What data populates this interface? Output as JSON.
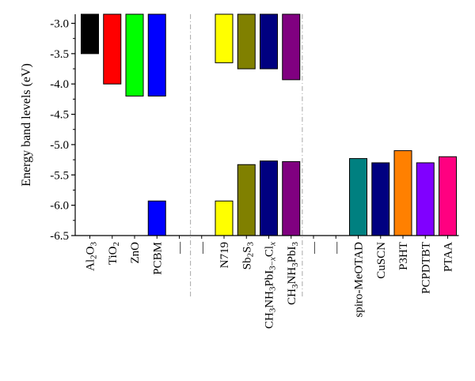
{
  "chart_data": {
    "type": "bar",
    "title": "",
    "xlabel": "",
    "ylabel": "Energy band levels (eV)",
    "ylim": [
      -6.5,
      -2.85
    ],
    "yticks": [
      -3.0,
      -3.5,
      -4.0,
      -4.5,
      -5.0,
      -5.5,
      -6.0,
      -6.5
    ],
    "ytick_labels": [
      "-3.0",
      "-3.5",
      "-4.0",
      "-4.5",
      "-5.0",
      "-5.5",
      "-6.0",
      "-6.5"
    ],
    "grid": false,
    "legend": "none",
    "bars_from": "top",
    "categories": [
      {
        "label": "Al2O3",
        "parts": [
          [
            "Al",
            ""
          ],
          [
            "2",
            "sub"
          ],
          [
            "O",
            ""
          ],
          [
            "3",
            "sub"
          ]
        ]
      },
      {
        "label": "TiO2",
        "parts": [
          [
            "TiO",
            ""
          ],
          [
            "2",
            "sub"
          ]
        ]
      },
      {
        "label": "ZnO",
        "parts": [
          [
            "ZnO",
            ""
          ]
        ]
      },
      {
        "label": "PCBM",
        "parts": [
          [
            "PCBM",
            ""
          ]
        ]
      },
      {
        "label": "—",
        "parts": [
          [
            "—",
            ""
          ]
        ]
      },
      {
        "label": "—",
        "parts": [
          [
            "—",
            ""
          ]
        ]
      },
      {
        "label": "N719",
        "parts": [
          [
            "N719",
            ""
          ]
        ]
      },
      {
        "label": "Sb2S3",
        "parts": [
          [
            "Sb",
            ""
          ],
          [
            "2",
            "sub"
          ],
          [
            "S",
            ""
          ],
          [
            "3",
            "sub"
          ]
        ]
      },
      {
        "label": "CH3NH3PbI3−xClx",
        "parts": [
          [
            "CH",
            ""
          ],
          [
            "3",
            "sub"
          ],
          [
            "NH",
            ""
          ],
          [
            "3",
            "sub"
          ],
          [
            "PbI",
            ""
          ],
          [
            "3−",
            "sub"
          ],
          [
            "x",
            "subi"
          ],
          [
            "Cl",
            ""
          ],
          [
            "x",
            "subi"
          ]
        ]
      },
      {
        "label": "CH3NH3PbI3",
        "parts": [
          [
            "CH",
            ""
          ],
          [
            "3",
            "sub"
          ],
          [
            "NH",
            ""
          ],
          [
            "3",
            "sub"
          ],
          [
            "PbI",
            ""
          ],
          [
            "3",
            "sub"
          ]
        ]
      },
      {
        "label": "—",
        "parts": [
          [
            "—",
            ""
          ]
        ]
      },
      {
        "label": "—",
        "parts": [
          [
            "—",
            ""
          ]
        ]
      },
      {
        "label": "spiro-MeOTAD",
        "parts": [
          [
            "spiro-MeOTAD",
            ""
          ]
        ]
      },
      {
        "label": "CuSCN",
        "parts": [
          [
            "CuSCN",
            ""
          ]
        ]
      },
      {
        "label": "P3HT",
        "parts": [
          [
            "P3HT",
            ""
          ]
        ]
      },
      {
        "label": "PCPDTBT",
        "parts": [
          [
            "PCPDTBT",
            ""
          ]
        ]
      },
      {
        "label": "PTAA",
        "parts": [
          [
            "PTAA",
            ""
          ]
        ]
      }
    ],
    "series": [
      {
        "level": "upper",
        "values": [
          -3.5,
          -4.0,
          -4.2,
          -4.2,
          null,
          null,
          -3.65,
          -3.75,
          -3.75,
          -3.93,
          null,
          null,
          null,
          null,
          null,
          null,
          null
        ],
        "colors": [
          "#000000",
          "#ff0000",
          "#00ff00",
          "#0000ff",
          null,
          null,
          "#ffff00",
          "#808000",
          "#000080",
          "#800080",
          null,
          null,
          null,
          null,
          null,
          null,
          null
        ]
      },
      {
        "level": "lower",
        "values": [
          null,
          null,
          null,
          -5.93,
          null,
          null,
          -5.93,
          -5.33,
          -5.27,
          -5.28,
          null,
          null,
          -5.23,
          -5.3,
          -5.1,
          -5.3,
          -5.2
        ],
        "colors": [
          null,
          null,
          null,
          "#0000ff",
          null,
          null,
          "#ffff00",
          "#808000",
          "#000080",
          "#800080",
          null,
          null,
          "#008080",
          "#000080",
          "#ff8000",
          "#8000ff",
          "#ff0080"
        ]
      }
    ],
    "group_separators_after": [
      4,
      9
    ]
  }
}
